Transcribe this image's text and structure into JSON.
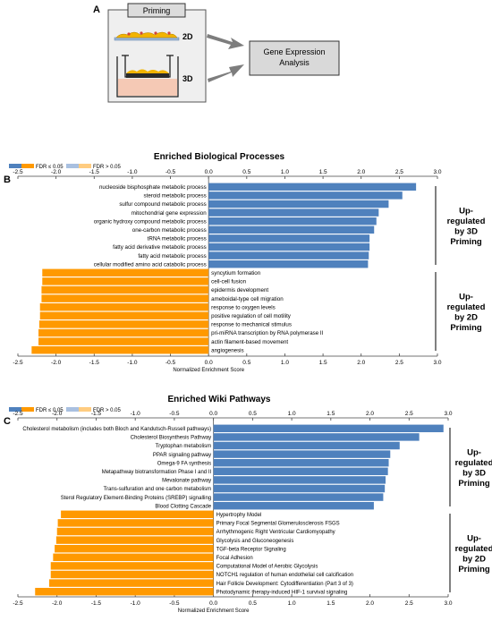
{
  "panel_a": {
    "letter": "A",
    "priming": "Priming",
    "label_2d": "2D",
    "label_3d": "3D",
    "gea_line1": "Gene Expression",
    "gea_line2": "Analysis"
  },
  "colors": {
    "up3d": "#4f81bd",
    "up2d": "#ff9900",
    "up3d_nonsig": "#a9c0e0",
    "up2d_nonsig": "#ffcc80"
  },
  "chart_data": [
    {
      "type": "bar",
      "panel": "B",
      "title": "Enriched Biological Processes",
      "xlabel": "Normalized Enrichment Score",
      "xlim": [
        -2.5,
        3.0
      ],
      "ticks": [
        "-2.5",
        "-2.0",
        "-1.5",
        "-1.0",
        "-0.5",
        "0.0",
        "0.5",
        "1.0",
        "1.5",
        "2.0",
        "2.5",
        "3.0"
      ],
      "legend": [
        "FDR ≤ 0.05",
        "FDR > 0.05"
      ],
      "group_up3d": [
        "Up-",
        "regulated",
        "by 3D",
        "Priming"
      ],
      "group_up2d": [
        "Up-",
        "regulated",
        "by 2D",
        "Priming"
      ],
      "categories": [
        "nucleoside bisphosphate metabolic process",
        "steroid metabolic process",
        "sulfur compound metabolic process",
        "mitochondrial gene expression",
        "organic hydroxy compound metabolic process",
        "one-carbon metabolic process",
        "tRNA metabolic process",
        "fatty acid derivative metabolic process",
        "fatty acid metabolic process",
        "cellular modified amino acid catabolic process",
        "syncytium formation",
        "cell-cell fusion",
        "epidermis development",
        "ameboidal-type cell migration",
        "response to oxygen levels",
        "positive regulation of cell motility",
        "response to mechanical stimulus",
        "pri-miRNA transcription by RNA polymerase II",
        "actin filament-based movement",
        "angiogenesis"
      ],
      "values": [
        2.72,
        2.54,
        2.36,
        2.23,
        2.2,
        2.17,
        2.11,
        2.11,
        2.1,
        2.09,
        -2.18,
        -2.18,
        -2.19,
        -2.19,
        -2.21,
        -2.21,
        -2.22,
        -2.23,
        -2.23,
        -2.32
      ]
    },
    {
      "type": "bar",
      "panel": "C",
      "title": "Enriched Wiki Pathways",
      "xlabel": "Normalized Enrichment Score",
      "xlim": [
        -2.5,
        3.0
      ],
      "ticks": [
        "-2.5",
        "-2.0",
        "-1.5",
        "-1.0",
        "-0.5",
        "0.0",
        "0.5",
        "1.0",
        "1.5",
        "2.0",
        "2.5",
        "3.0"
      ],
      "legend": [
        "FDR ≤ 0.05",
        "FDR > 0.05"
      ],
      "group_up3d": [
        "Up-",
        "regulated",
        "by 3D",
        "Priming"
      ],
      "group_up2d": [
        "Up-",
        "regulated",
        "by 2D",
        "Priming"
      ],
      "categories": [
        "Cholesterol metabolism (includes both Bloch and Kandutsch-Russell pathways)",
        "Cholesterol Biosynthesis Pathway",
        "Tryptophan metabolism",
        "PPAR signaling pathway",
        "Omega-9 FA synthesis",
        "Metapathway biotransformation Phase I and II",
        "Mevalonate pathway",
        "Trans-sulfuration and one carbon metabolism",
        "Sterol Regulatory Element-Binding Proteins (SREBP) signalling",
        "Blood Clotting Cascade",
        "Hypertrophy Model",
        "Primary Focal Segmental Glomerulosclerosis FSGS",
        "Arrhythmogenic Right Ventricular Cardiomyopathy",
        "Glycolysis and Gluconeogenesis",
        "TGF-beta Receptor Signaling",
        "Focal Adhesion",
        "Computational Model of Aerobic Glycolysis",
        "NOTCH1 regulation of human endothelial cell calcification",
        "Hair Follicle Development: Cytodifferentiation (Part 3 of 3)",
        "Photodynamic therapy-induced HIF-1 survival signaling"
      ],
      "values": [
        2.94,
        2.63,
        2.38,
        2.26,
        2.24,
        2.23,
        2.2,
        2.19,
        2.17,
        2.05,
        -1.95,
        -1.99,
        -2.0,
        -2.01,
        -2.03,
        -2.05,
        -2.08,
        -2.08,
        -2.1,
        -2.28
      ]
    }
  ]
}
